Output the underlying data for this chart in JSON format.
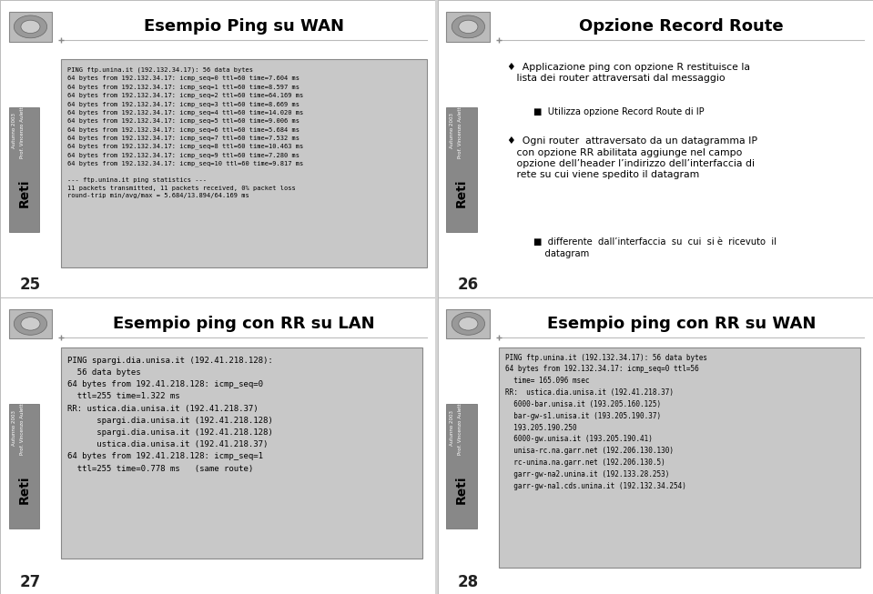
{
  "panel_bg": "#ffffff",
  "slide_bg": "#d4d4d4",
  "code_bg": "#c8c8c8",
  "divider_color": "#aaaaaa",
  "panel1_title": "Esempio Ping su WAN",
  "panel1_num": "25",
  "panel1_code": "PING ftp.unina.it (192.132.34.17): 56 data bytes\n64 bytes from 192.132.34.17: icmp_seq=0 ttl=60 time=7.604 ms\n64 bytes from 192.132.34.17: icmp_seq=1 ttl=60 time=8.597 ms\n64 bytes from 192.132.34.17: icmp_seq=2 ttl=60 time=64.169 ms\n64 bytes from 192.132.34.17: icmp_seq=3 ttl=60 time=8.669 ms\n64 bytes from 192.132.34.17: icmp_seq=4 ttl=60 time=14.020 ms\n64 bytes from 192.132.34.17: icmp_seq=5 ttl=60 time=9.006 ms\n64 bytes from 192.132.34.17: icmp_seq=6 ttl=60 time=5.684 ms\n64 bytes from 192.132.34.17: icmp_seq=7 ttl=60 time=7.532 ms\n64 bytes from 192.132.34.17: icmp_seq=8 ttl=60 time=10.463 ms\n64 bytes from 192.132.34.17: icmp_seq=9 ttl=60 time=7.280 ms\n64 bytes from 192.132.34.17: icmp_seq=10 ttl=60 time=9.817 ms\n\n--- ftp.unina.it ping statistics ---\n11 packets transmitted, 11 packets received, 0% packet loss\nround-trip min/avg/max = 5.684/13.894/64.169 ms",
  "panel2_title": "Opzione Record Route",
  "panel2_num": "26",
  "panel2_bullet1a": "♦  Applicazione ping con opzione R restituisce la",
  "panel2_bullet1b": "   lista dei router attraversati dal messaggio",
  "panel2_sub1": "■  Utilizza opzione Record Route di IP",
  "panel2_bullet2a": "♦  Ogni router  attraversato da un datagramma IP",
  "panel2_bullet2b": "   con opzione RR abilitata aggiunge nel campo",
  "panel2_bullet2c": "   opzione dell’header l’indirizzo dell’interfaccia di",
  "panel2_bullet2d": "   rete su cui viene spedito il datagram",
  "panel2_sub2a": "■  differente  dall’interfaccia  su  cui  si è  ricevuto  il",
  "panel2_sub2b": "    datagram",
  "panel3_title": "Esempio ping con RR su LAN",
  "panel3_num": "27",
  "panel3_code": "PING spargi.dia.unisa.it (192.41.218.128):\n  56 data bytes\n64 bytes from 192.41.218.128: icmp_seq=0\n  ttl=255 time=1.322 ms\nRR: ustica.dia.unisa.it (192.41.218.37)\n      spargi.dia.unisa.it (192.41.218.128)\n      spargi.dia.unisa.it (192.41.218.128)\n      ustica.dia.unisa.it (192.41.218.37)\n64 bytes from 192.41.218.128: icmp_seq=1\n  ttl=255 time=0.778 ms   (same route)",
  "panel4_title": "Esempio ping con RR su WAN",
  "panel4_num": "28",
  "panel4_code": "PING ftp.unina.it (192.132.34.17): 56 data bytes\n64 bytes from 192.132.34.17: icmp_seq=0 ttl=56\n  time= 165.096 msec\nRR:  ustica.dia.unisa.it (192.41.218.37)\n  6000-bar.unisa.it (193.205.160.125)\n  bar-gw-s1.unisa.it (193.205.190.37)\n  193.205.190.250\n  6000-gw.unisa.it (193.205.190.41)\n  unisa-rc.na.garr.net (192.206.130.130)\n  rc-unina.na.garr.net (192.206.130.5)\n  garr-gw-na2.unina.it (192.133.28.253)\n  garr-gw-na1.cds.unina.it (192.132.34.254)"
}
